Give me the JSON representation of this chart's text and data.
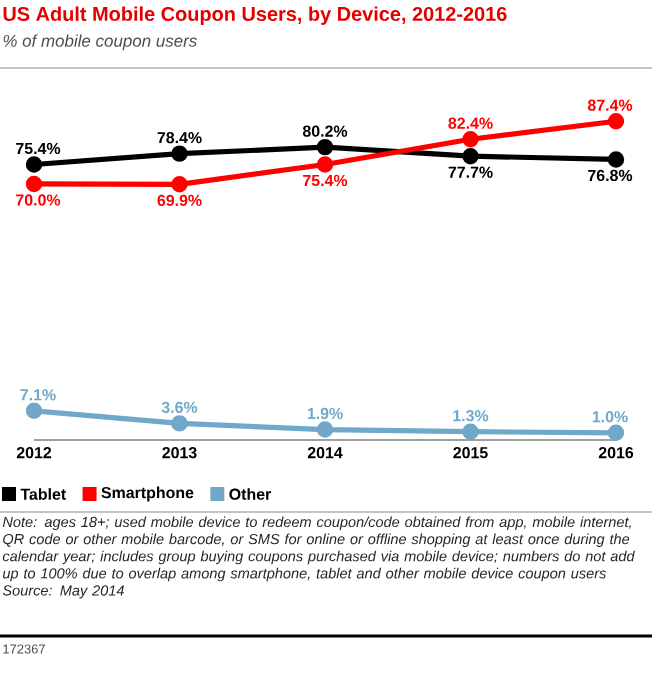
{
  "chart_data": {
    "type": "line",
    "title": "US Adult Mobile Coupon Users, by Device, 2012-2016",
    "subtitle": "% of mobile coupon users",
    "categories": [
      "2012",
      "2013",
      "2014",
      "2015",
      "2016"
    ],
    "series": [
      {
        "name": "Tablet",
        "color": "#000000",
        "values": [
          75.4,
          78.4,
          80.2,
          77.7,
          76.8
        ],
        "value_labels": [
          "75.4%",
          "78.4%",
          "80.2%",
          "77.7%",
          "76.8%"
        ]
      },
      {
        "name": "Smartphone",
        "color": "#ff0000",
        "values": [
          70.0,
          69.9,
          75.4,
          82.4,
          87.4
        ],
        "value_labels": [
          "70.0%",
          "69.9%",
          "75.4%",
          "82.4%",
          "87.4%"
        ]
      },
      {
        "name": "Other",
        "color": "#6fa8c8",
        "values": [
          7.1,
          3.6,
          1.9,
          1.3,
          1.0
        ],
        "value_labels": [
          "7.1%",
          "3.6%",
          "1.9%",
          "1.3%",
          "1.0%"
        ]
      }
    ],
    "marker": "circle",
    "legend": "bottom",
    "grid": false,
    "annotations": [
      "Note: ages 18+; used mobile device to redeem coupon/code obtained from app, mobile internet, QR code or other mobile barcode, or SMS for online or offline shopping at least once during the calendar year; includes group buying coupons purchased via mobile device; numbers do not add up to 100% due to overlap among smartphone, tablet and other mobile device coupon users",
      "Source: May 2014",
      "172367"
    ]
  }
}
